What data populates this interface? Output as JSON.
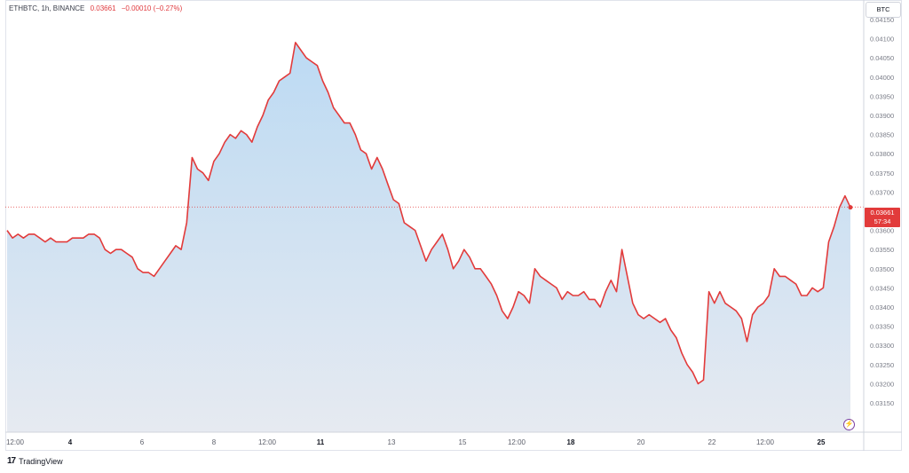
{
  "header": {
    "symbol": "ETHBTC, 1h, BINANCE",
    "last": "0.03661",
    "change": "−0.00010 (−0.27%)"
  },
  "axis_unit": "BTC",
  "price_tag": {
    "price": "0.03661",
    "countdown": "57:34"
  },
  "brand": {
    "logo": "17",
    "name": "TradingView"
  },
  "colors": {
    "line": "#e23b3b",
    "area_top": "#bcdaf3",
    "area_bottom": "#e9ecf2",
    "grid_border": "#e0e3eb"
  },
  "icons": {
    "bolt": "lightning-icon"
  },
  "chart_data": {
    "type": "area",
    "title": "",
    "xlabel": "",
    "ylabel": "",
    "grid": false,
    "ylim": [
      0.0311,
      0.0416
    ],
    "x_ticks": [
      "12:00",
      "4",
      "6",
      "8",
      "12:00",
      "11",
      "13",
      "15",
      "12:00",
      "18",
      "20",
      "22",
      "12:00",
      "25"
    ],
    "y_ticks": [
      "0.03150",
      "0.03200",
      "0.03250",
      "0.03300",
      "0.03350",
      "0.03400",
      "0.03450",
      "0.03500",
      "0.03550",
      "0.03600",
      "0.03650",
      "0.03700",
      "0.03750",
      "0.03800",
      "0.03850",
      "0.03900",
      "0.03950",
      "0.04000",
      "0.04050",
      "0.04100",
      "0.04150"
    ],
    "series": [
      {
        "values": [
          0.036,
          0.0358,
          0.0359,
          0.0358,
          0.0359,
          0.0359,
          0.0358,
          0.0357,
          0.0358,
          0.0357,
          0.0357,
          0.0357,
          0.0358,
          0.0358,
          0.0358,
          0.0359,
          0.0359,
          0.0358,
          0.0355,
          0.0354,
          0.0355,
          0.0355,
          0.0354,
          0.0353,
          0.035,
          0.0349,
          0.0349,
          0.0348,
          0.035,
          0.0352,
          0.0354,
          0.0356,
          0.0355,
          0.0362,
          0.0379,
          0.0376,
          0.0375,
          0.0373,
          0.0378,
          0.038,
          0.0383,
          0.0385,
          0.0384,
          0.0386,
          0.0385,
          0.0383,
          0.0387,
          0.039,
          0.0394,
          0.0396,
          0.0399,
          0.04,
          0.0401,
          0.0409,
          0.0407,
          0.0405,
          0.0404,
          0.0403,
          0.0399,
          0.0396,
          0.0392,
          0.039,
          0.0388,
          0.0388,
          0.0385,
          0.0381,
          0.038,
          0.0376,
          0.0379,
          0.0376,
          0.0372,
          0.0368,
          0.0367,
          0.0362,
          0.0361,
          0.036,
          0.0356,
          0.0352,
          0.0355,
          0.0357,
          0.0359,
          0.0355,
          0.035,
          0.0352,
          0.0355,
          0.0353,
          0.035,
          0.035,
          0.0348,
          0.0346,
          0.0343,
          0.0339,
          0.0337,
          0.034,
          0.0344,
          0.0343,
          0.0341,
          0.035,
          0.0348,
          0.0347,
          0.0346,
          0.0345,
          0.0342,
          0.0344,
          0.0343,
          0.0343,
          0.0344,
          0.0342,
          0.0342,
          0.034,
          0.0344,
          0.0347,
          0.0344,
          0.0355,
          0.0348,
          0.0341,
          0.0338,
          0.0337,
          0.0338,
          0.0337,
          0.0336,
          0.0337,
          0.0334,
          0.0332,
          0.0328,
          0.0325,
          0.0323,
          0.032,
          0.0321,
          0.0344,
          0.0341,
          0.0344,
          0.0341,
          0.034,
          0.0339,
          0.0337,
          0.0331,
          0.0338,
          0.034,
          0.0341,
          0.0343,
          0.035,
          0.0348,
          0.0348,
          0.0347,
          0.0346,
          0.0343,
          0.0343,
          0.0345,
          0.0344,
          0.0345,
          0.0357,
          0.0361,
          0.0366,
          0.0369,
          0.0366
        ]
      }
    ]
  }
}
